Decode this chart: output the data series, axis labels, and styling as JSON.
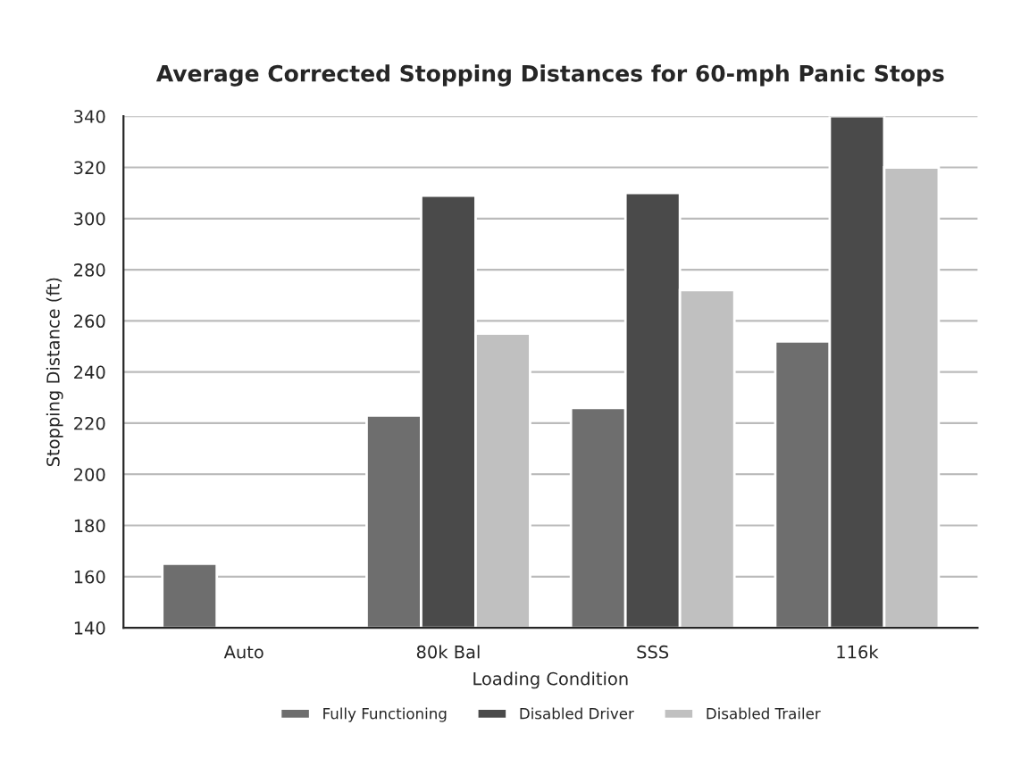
{
  "chart_data": {
    "type": "bar",
    "title": "Average Corrected Stopping Distances for 60-mph Panic Stops",
    "xlabel": "Loading Condition",
    "ylabel": "Stopping Distance (ft)",
    "categories": [
      "Auto",
      "80k Bal",
      "SSS",
      "116k"
    ],
    "series": [
      {
        "name": "Fully Functioning",
        "color": "#6e6e6e",
        "values": [
          165,
          223,
          226,
          252
        ]
      },
      {
        "name": "Disabled Driver",
        "color": "#4a4a4a",
        "values": [
          null,
          309,
          310,
          340
        ]
      },
      {
        "name": "Disabled Trailer",
        "color": "#c0c0c0",
        "values": [
          null,
          255,
          272,
          320
        ]
      }
    ],
    "ylim": [
      140,
      340
    ],
    "yticks": [
      140,
      160,
      180,
      200,
      220,
      240,
      260,
      280,
      300,
      320,
      340
    ],
    "grid": "y",
    "legend": "bottom"
  }
}
